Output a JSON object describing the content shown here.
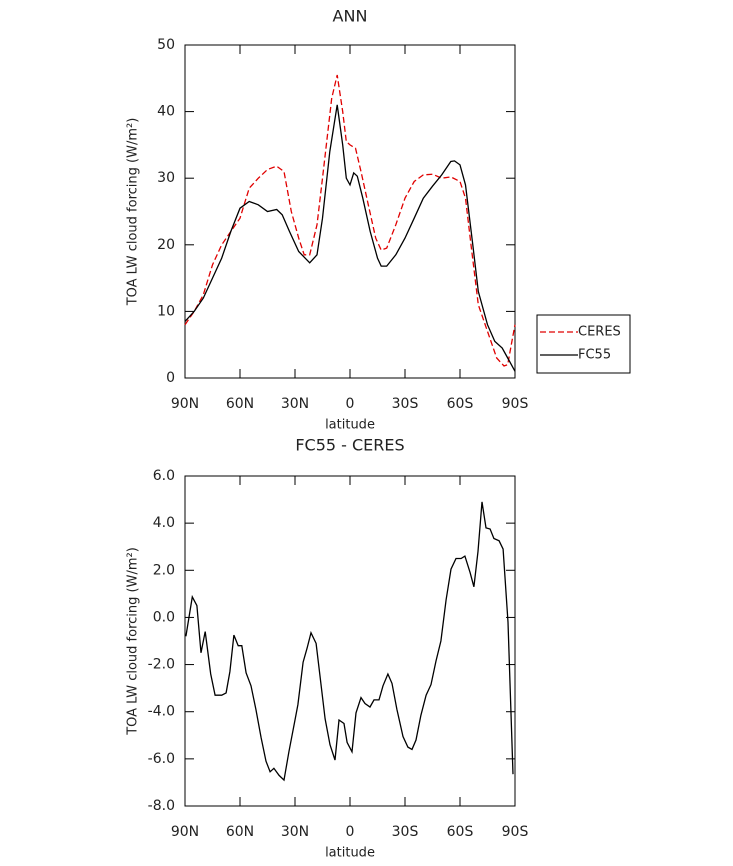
{
  "chart_data": [
    {
      "type": "line",
      "title": "ANN",
      "xlabel": "latitude",
      "ylabel": "TOA LW cloud forcing (W/m²)",
      "xlim": [
        90,
        -90
      ],
      "xticks": [
        {
          "value": 90,
          "label": "90N"
        },
        {
          "value": 60,
          "label": "60N"
        },
        {
          "value": 30,
          "label": "30N"
        },
        0,
        {
          "value": -30,
          "label": "30S"
        },
        {
          "value": -60,
          "label": "60S"
        },
        {
          "value": -90,
          "label": "90S"
        }
      ],
      "ylim": [
        0,
        50
      ],
      "yticks": [
        0,
        10,
        20,
        30,
        40,
        50
      ],
      "legend": "right",
      "series": [
        {
          "name": "CERES",
          "color": "#e00000",
          "style": "dashed",
          "x": [
            90,
            85,
            80,
            75,
            70,
            65,
            60,
            55,
            50,
            45,
            40,
            36,
            32,
            28,
            25,
            22,
            18,
            15,
            10,
            7,
            4,
            2,
            0,
            -3,
            -6,
            -10,
            -14,
            -17,
            -20,
            -25,
            -30,
            -35,
            -40,
            -45,
            -50,
            -55,
            -60,
            -63,
            -66,
            -70,
            -75,
            -80,
            -84,
            -86,
            -88,
            -90
          ],
          "values": [
            8,
            10,
            12.5,
            17,
            20,
            22,
            24,
            28.5,
            30,
            31.3,
            31.8,
            31,
            25,
            21,
            18.5,
            18.5,
            23,
            30,
            42,
            45.5,
            40,
            35.5,
            35,
            34.5,
            31,
            26,
            21,
            19.2,
            19.5,
            23,
            27,
            29.5,
            30.5,
            30.6,
            30,
            30.2,
            29.5,
            27,
            20,
            11,
            7,
            3,
            1.8,
            2,
            5,
            8
          ]
        },
        {
          "name": "FC55",
          "color": "#000000",
          "style": "solid",
          "x": [
            90,
            85,
            80,
            75,
            70,
            65,
            60,
            55,
            50,
            45,
            40,
            37,
            33,
            28,
            22,
            18,
            15,
            11,
            7,
            4,
            2,
            0,
            -2,
            -4,
            -7,
            -11,
            -15,
            -17,
            -20,
            -25,
            -30,
            -35,
            -40,
            -45,
            -50,
            -55,
            -57,
            -60,
            -63,
            -67,
            -70,
            -75,
            -79,
            -83,
            -86,
            -90
          ],
          "values": [
            8.5,
            10,
            12,
            15,
            18,
            22,
            25.5,
            26.5,
            26,
            25,
            25.3,
            24.5,
            22,
            19,
            17.3,
            18.5,
            24,
            34,
            41,
            35,
            30,
            29,
            30.8,
            30.3,
            27,
            22,
            18,
            16.8,
            16.8,
            18.5,
            21,
            24,
            27,
            28.8,
            30.5,
            32.5,
            32.6,
            32,
            29,
            20,
            13,
            8,
            5.5,
            4.5,
            3,
            1
          ]
        }
      ]
    },
    {
      "type": "line",
      "title": "FC55 - CERES",
      "xlabel": "latitude",
      "ylabel": "TOA LW cloud forcing (W/m²)",
      "xlim": [
        90,
        -90
      ],
      "xticks": [
        {
          "value": 90,
          "label": "90N"
        },
        {
          "value": 60,
          "label": "60N"
        },
        {
          "value": 30,
          "label": "30N"
        },
        0,
        {
          "value": -30,
          "label": "30S"
        },
        {
          "value": -60,
          "label": "60S"
        },
        {
          "value": -90,
          "label": "90S"
        }
      ],
      "ylim": [
        -8,
        6
      ],
      "yticks": [
        {
          "value": -8,
          "label": "-8.0"
        },
        {
          "value": -6,
          "label": "-6.0"
        },
        {
          "value": -4,
          "label": "-4.0"
        },
        {
          "value": -2,
          "label": "-2.0"
        },
        {
          "value": 0,
          "label": "0.0"
        },
        {
          "value": 2,
          "label": "2.0"
        },
        {
          "value": 4,
          "label": "4.0"
        },
        {
          "value": 6,
          "label": "6.0"
        }
      ],
      "series": [
        {
          "color": "#000000",
          "style": "solid",
          "x": [
            89.5,
            86,
            83.5,
            81.3,
            79,
            76,
            73.6,
            70,
            67.6,
            65.5,
            63.3,
            61,
            59,
            56.7,
            54,
            51.3,
            48.5,
            45.8,
            43.6,
            41.5,
            38.7,
            36,
            33.3,
            30,
            28.4,
            25.6,
            23.4,
            21.3,
            18.5,
            16.4,
            13.6,
            10.9,
            8.2,
            6,
            3.3,
            1.6,
            -1.1,
            -3.3,
            -6,
            -8.2,
            -10.9,
            -13.1,
            -15.8,
            -18,
            -20.7,
            -22.9,
            -25.6,
            -28.9,
            -31.6,
            -33.8,
            -36,
            -38.7,
            -41.5,
            -44.2,
            -46.9,
            -49.6,
            -52.4,
            -55.1,
            -57.8,
            -60.6,
            -62.7,
            -65.5,
            -67.6,
            -69.8,
            -72,
            -74.2,
            -76.4,
            -78.5,
            -81.3,
            -83.5,
            -86.2,
            -88.9
          ],
          "values": [
            -0.8,
            0.87,
            0.5,
            -1.5,
            -0.6,
            -2.4,
            -3.3,
            -3.3,
            -3.2,
            -2.3,
            -0.75,
            -1.2,
            -1.2,
            -2.35,
            -2.9,
            -3.9,
            -5.1,
            -6.1,
            -6.55,
            -6.4,
            -6.7,
            -6.9,
            -5.7,
            -4.35,
            -3.7,
            -1.9,
            -1.3,
            -0.65,
            -1.1,
            -2.45,
            -4.3,
            -5.4,
            -6.05,
            -4.35,
            -4.5,
            -5.3,
            -5.7,
            -4.05,
            -3.4,
            -3.65,
            -3.8,
            -3.5,
            -3.5,
            -2.9,
            -2.4,
            -2.8,
            -3.9,
            -5.05,
            -5.5,
            -5.6,
            -5.2,
            -4.15,
            -3.3,
            -2.85,
            -1.85,
            -1.0,
            0.75,
            2.05,
            2.5,
            2.5,
            2.6,
            1.9,
            1.3,
            2.8,
            4.9,
            3.8,
            3.75,
            3.35,
            3.25,
            2.9,
            -0.2,
            -6.65
          ]
        }
      ]
    }
  ]
}
